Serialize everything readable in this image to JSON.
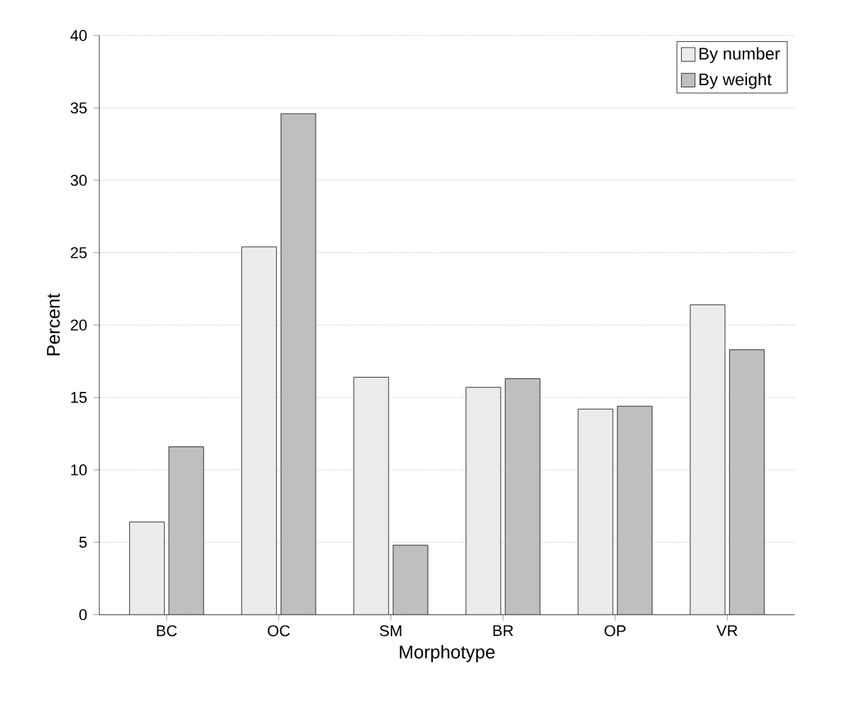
{
  "chart_data": {
    "type": "bar",
    "xlabel": "Morphotype",
    "ylabel": "Percent",
    "categories": [
      "BC",
      "OC",
      "SM",
      "BR",
      "OP",
      "VR"
    ],
    "series": [
      {
        "name": "By number",
        "color": "#ececec",
        "values": [
          6.4,
          25.4,
          16.4,
          15.7,
          14.2,
          21.4
        ]
      },
      {
        "name": "By weight",
        "color": "#bfbfbf",
        "values": [
          11.6,
          34.6,
          4.8,
          16.3,
          14.4,
          18.3
        ]
      }
    ],
    "ylim": [
      0,
      40
    ],
    "yticks": [
      0,
      5,
      10,
      15,
      20,
      25,
      30,
      35,
      40
    ],
    "grid": "y",
    "legend": "top right"
  }
}
